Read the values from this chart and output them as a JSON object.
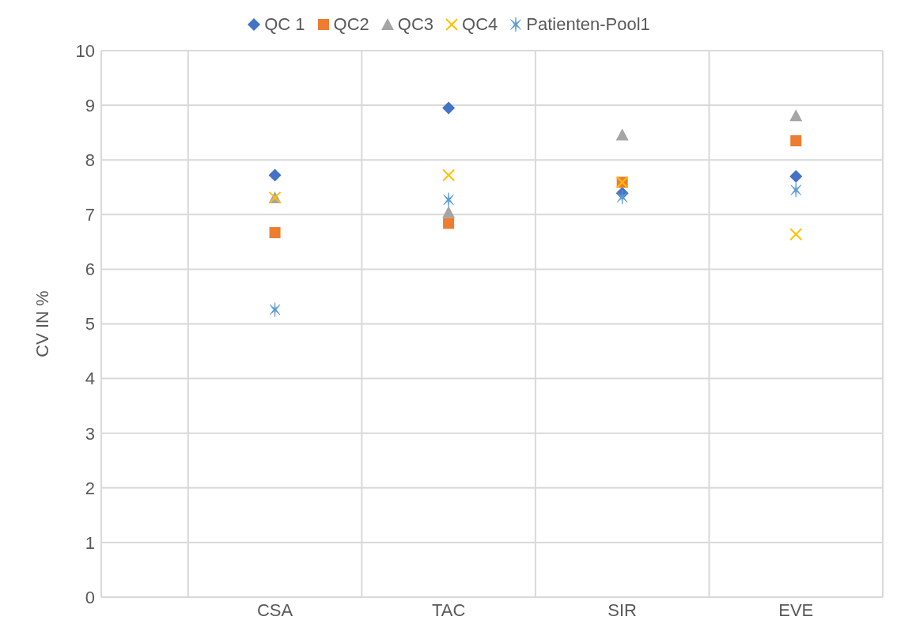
{
  "chart_data": {
    "type": "scatter",
    "ylabel": "CV IN %",
    "categories": [
      "CSA",
      "TAC",
      "SIR",
      "EVE"
    ],
    "ylim": [
      0,
      10
    ],
    "yticks": [
      0,
      1,
      2,
      3,
      4,
      5,
      6,
      7,
      8,
      9,
      10
    ],
    "grid": true,
    "legend": "top",
    "series": [
      {
        "name": "QC 1",
        "color": "#4472c4",
        "marker": "diamond",
        "values": [
          7.72,
          8.95,
          7.39,
          7.7
        ]
      },
      {
        "name": "QC2",
        "color": "#ed7d31",
        "marker": "square",
        "values": [
          6.67,
          6.84,
          7.59,
          8.35
        ]
      },
      {
        "name": "QC3",
        "color": "#a5a5a5",
        "marker": "triangle",
        "values": [
          7.31,
          7.04,
          8.46,
          8.81
        ]
      },
      {
        "name": "QC4",
        "color": "#ffc000",
        "marker": "cross",
        "values": [
          7.31,
          7.72,
          7.59,
          6.64
        ]
      },
      {
        "name": "Patienten-Pool1",
        "color": "#5b9bd5",
        "values": [
          5.26,
          7.27,
          7.32,
          7.45
        ]
      }
    ]
  }
}
